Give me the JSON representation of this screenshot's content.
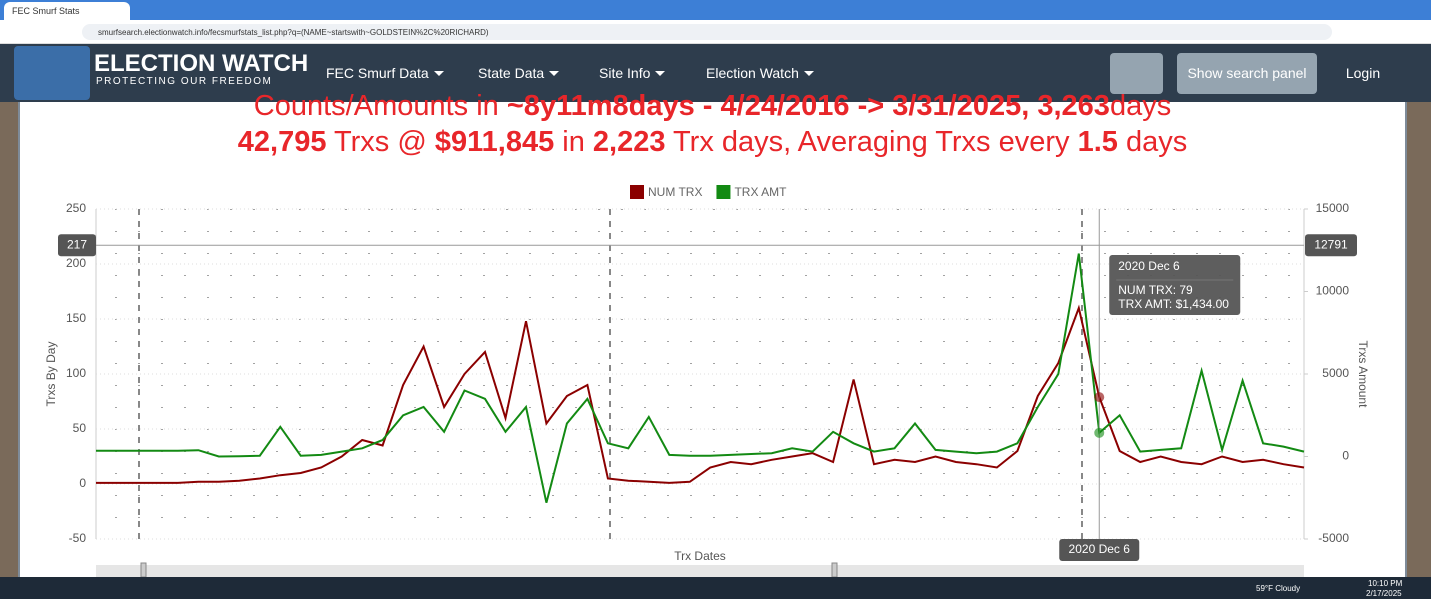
{
  "browser": {
    "tab_title": "FEC Smurf Stats",
    "url": "smurfsearch.electionwatch.info/fecsmurfstats_list.php?q=(NAME~startswith~GOLDSTEIN%2C%20RICHARD)"
  },
  "nav": {
    "brand": "ELECTION WATCH",
    "tagline": "PROTECTING OUR FREEDOM",
    "menu": [
      "FEC Smurf Data",
      "State Data",
      "Site Info",
      "Election Watch"
    ],
    "buttons": [
      "Show search panel",
      "Login"
    ]
  },
  "headline": {
    "line1": [
      "Counts/Amounts in ",
      "~8y11m8days - 4/24/2016 -> 3/31/2025, 3,263",
      "days"
    ],
    "line2": [
      "",
      "42,795",
      " Trxs @ ",
      "$911,845",
      " in ",
      "2,223",
      " Trx days, Averaging Trxs every ",
      "1.5",
      " days"
    ]
  },
  "chart_data": {
    "type": "line",
    "xlabel": "Trx Dates",
    "ylabel": "Trxs By Day",
    "y2label": "Trxs Amount",
    "ylim": [
      -50,
      250
    ],
    "yticks": [
      -50,
      0,
      50,
      100,
      150,
      200,
      250
    ],
    "y2lim": [
      -5000,
      15000
    ],
    "y2ticks": [
      -5000,
      0,
      5000,
      10000,
      15000
    ],
    "grid": true,
    "legend": "top",
    "series": [
      {
        "name": "NUM TRX",
        "color": "#8b0000",
        "values": [
          1,
          1,
          1,
          1,
          1,
          2,
          2,
          3,
          5,
          8,
          10,
          15,
          25,
          40,
          35,
          90,
          125,
          70,
          100,
          120,
          60,
          148,
          55,
          80,
          90,
          5,
          3,
          2,
          1,
          2,
          15,
          20,
          18,
          22,
          25,
          28,
          20,
          95,
          18,
          22,
          20,
          25,
          20,
          18,
          15,
          30,
          80,
          110,
          160,
          79,
          30,
          20,
          25,
          20,
          18,
          25,
          20,
          22,
          18,
          15
        ]
      },
      {
        "name": "TRX AMT",
        "color": "#138a13",
        "axis": "y2",
        "values": [
          350,
          350,
          350,
          350,
          350,
          380,
          0,
          20,
          50,
          1800,
          50,
          100,
          300,
          500,
          1000,
          2500,
          3000,
          1500,
          4000,
          3500,
          1500,
          3000,
          -2800,
          2000,
          3500,
          800,
          500,
          2400,
          100,
          50,
          50,
          100,
          150,
          200,
          500,
          300,
          1500,
          800,
          300,
          500,
          2000,
          400,
          300,
          200,
          300,
          800,
          3000,
          5000,
          12300,
          1434,
          2500,
          300,
          400,
          500,
          5200,
          400,
          4600,
          800,
          600,
          300
        ]
      }
    ],
    "crosshair": {
      "index": 49,
      "y_value": 217,
      "y2_value": 12791,
      "x_label": "2020 Dec 6",
      "tooltip": {
        "title": "2020 Dec 6",
        "lines": [
          "NUM TRX: 79",
          "TRX AMT: $1,434.00"
        ]
      }
    }
  },
  "taskbar": {
    "weather": "59°F Cloudy",
    "time": "10:10 PM",
    "date": "2/17/2025"
  }
}
